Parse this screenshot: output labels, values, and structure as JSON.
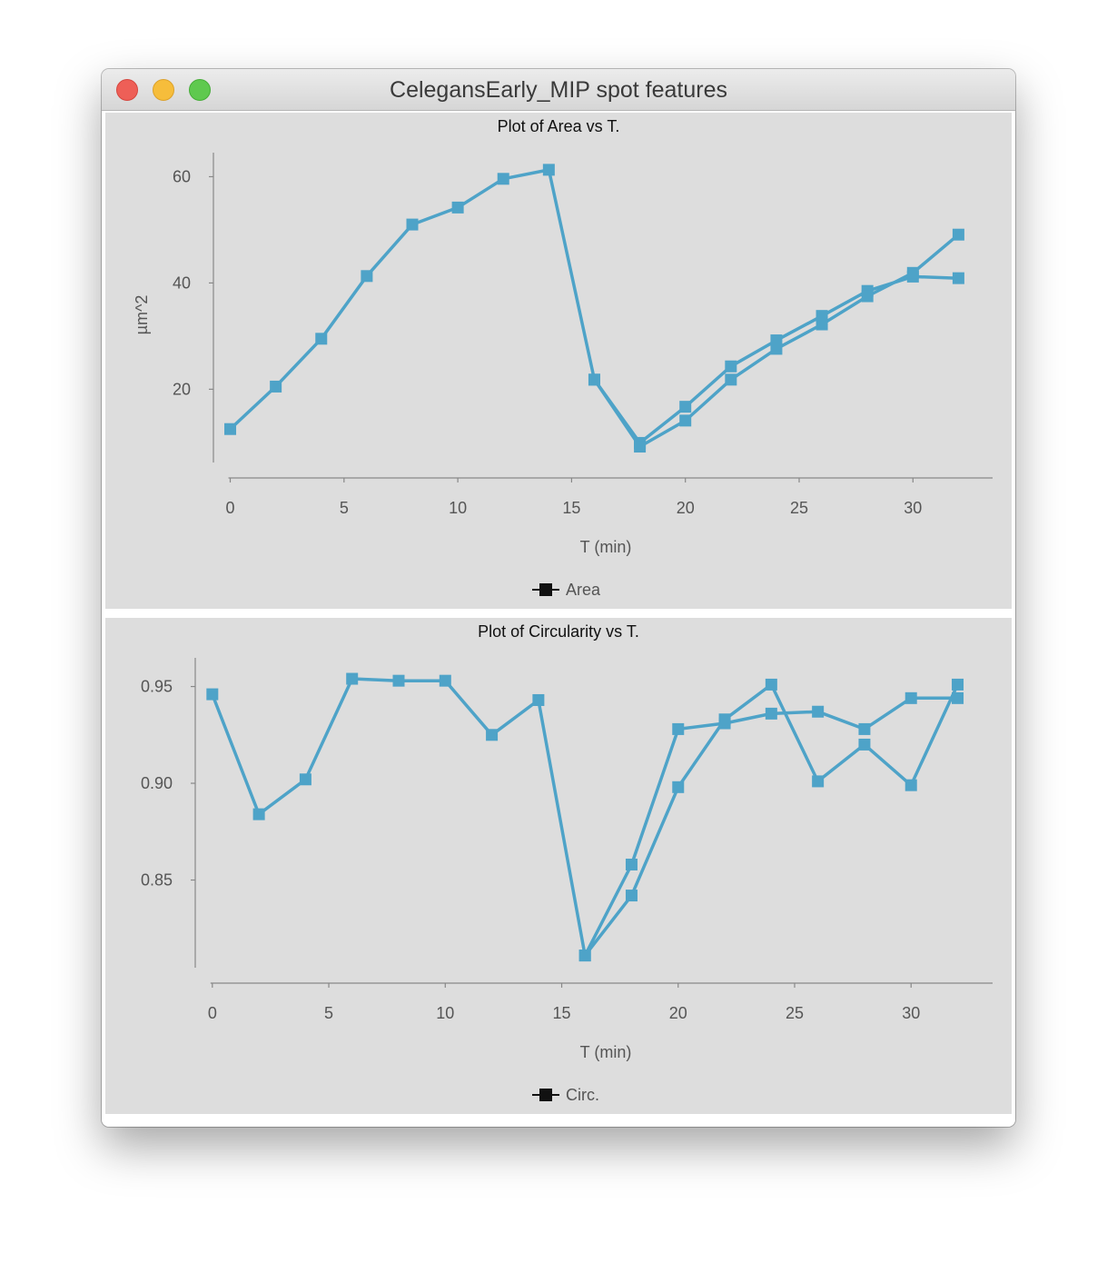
{
  "window": {
    "title": "CelegansEarly_MIP spot features"
  },
  "colors": {
    "series": "#4ea3c8",
    "axis": "#888888",
    "panel_bg": "#dddddd"
  },
  "chart_data": [
    {
      "type": "line",
      "title": "Plot of Area vs T.",
      "xlabel": "T (min)",
      "ylabel": "µm^2",
      "xlim": [
        -0.5,
        33.5
      ],
      "ylim": [
        4.5,
        63.5
      ],
      "xticks": [
        "0",
        "5",
        "10",
        "15",
        "20",
        "25",
        "30"
      ],
      "yticks": [
        "20",
        "40",
        "60"
      ],
      "legend": {
        "label": "Area",
        "position": "bottom"
      },
      "grid": false,
      "series": [
        {
          "x": [
            0,
            2,
            4,
            6,
            8,
            10,
            12,
            14,
            16,
            18,
            20,
            22,
            24,
            26,
            28,
            30,
            32
          ],
          "y": [
            12.5,
            20.5,
            29.5,
            41.3,
            51.0,
            54.2,
            59.6,
            61.3,
            21.8,
            9.9,
            16.7,
            24.3,
            29.2,
            33.8,
            38.5,
            41.2,
            40.9
          ]
        },
        {
          "x": [
            16,
            18,
            20,
            22,
            24,
            26,
            28,
            30,
            32
          ],
          "y": [
            21.8,
            9.2,
            14.1,
            21.8,
            27.6,
            32.2,
            37.5,
            41.9,
            49.1
          ]
        }
      ]
    },
    {
      "type": "line",
      "title": "Plot of Circularity vs T.",
      "xlabel": "T (min)",
      "ylabel": "",
      "xlim": [
        -0.5,
        33.5
      ],
      "ylim": [
        0.8,
        0.962
      ],
      "xticks": [
        "0",
        "5",
        "10",
        "15",
        "20",
        "25",
        "30"
      ],
      "yticks": [
        "0.85",
        "0.90",
        "0.95"
      ],
      "legend": {
        "label": "Circ.",
        "position": "bottom"
      },
      "grid": false,
      "series": [
        {
          "x": [
            0,
            2,
            4,
            6,
            8,
            10,
            12,
            14,
            16,
            18,
            20,
            22,
            24,
            26,
            28,
            30,
            32
          ],
          "y": [
            0.946,
            0.884,
            0.902,
            0.954,
            0.953,
            0.953,
            0.925,
            0.943,
            0.811,
            0.858,
            0.928,
            0.931,
            0.936,
            0.937,
            0.928,
            0.944,
            0.944
          ]
        },
        {
          "x": [
            16,
            18,
            20,
            22,
            24,
            26,
            28,
            30,
            32
          ],
          "y": [
            0.811,
            0.842,
            0.898,
            0.933,
            0.951,
            0.901,
            0.92,
            0.899,
            0.951
          ]
        }
      ]
    }
  ]
}
